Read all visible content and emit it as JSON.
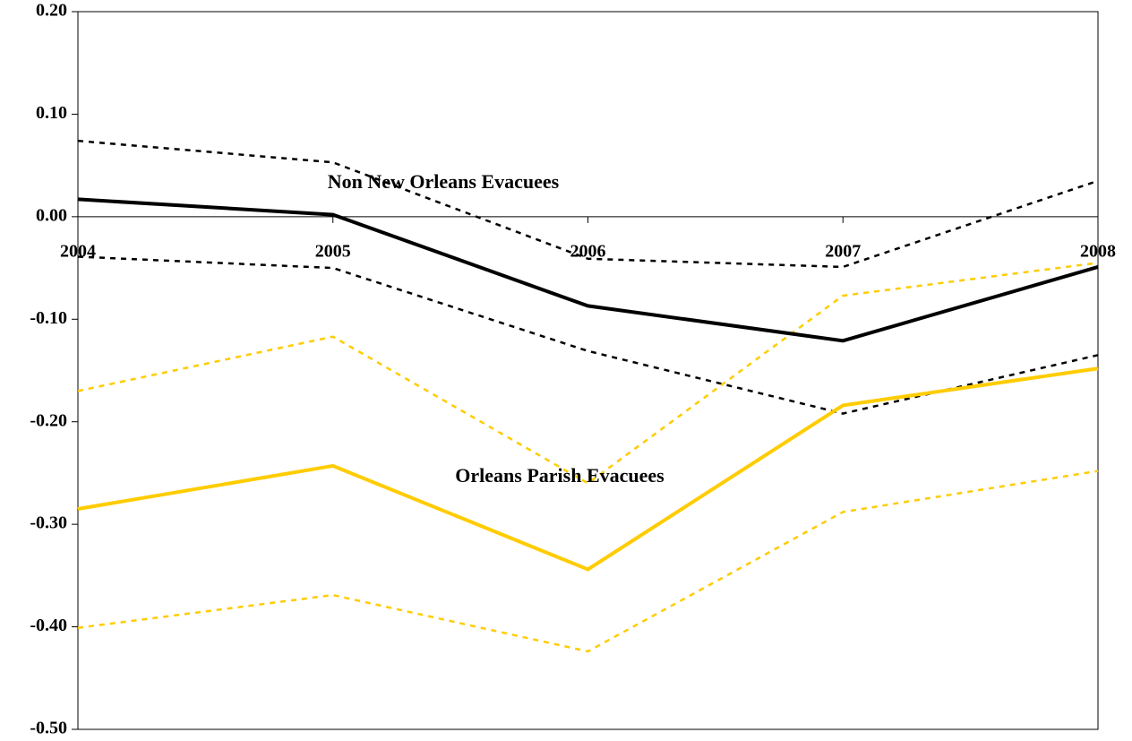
{
  "chart_data": {
    "type": "line",
    "categories": [
      "2004",
      "2005",
      "2006",
      "2007",
      "2008"
    ],
    "ylim": [
      -0.5,
      0.2
    ],
    "yticks": [
      {
        "value": 0.2,
        "label": "0.20"
      },
      {
        "value": 0.1,
        "label": "0.10"
      },
      {
        "value": 0,
        "label": "0.00"
      },
      {
        "value": -0.1,
        "label": "-0.10"
      },
      {
        "value": -0.2,
        "label": "-0.20"
      },
      {
        "value": -0.3,
        "label": "-0.30"
      },
      {
        "value": -0.4,
        "label": "-0.40"
      },
      {
        "value": -0.5,
        "label": "-0.50"
      }
    ],
    "grid": false,
    "annotations": [
      "Non New Orleans Evacuees",
      "Orleans Parish Evacuees"
    ],
    "series": [
      {
        "color": "#000000",
        "style": "dashed",
        "values": [
          0.074,
          0.053,
          -0.041,
          -0.049,
          0.035
        ]
      },
      {
        "color": "#000000",
        "style": "dashed",
        "values": [
          -0.039,
          -0.05,
          -0.131,
          -0.192,
          -0.135
        ]
      },
      {
        "color": "#ffcc00",
        "style": "dashed",
        "values": [
          -0.17,
          -0.117,
          -0.26,
          -0.077,
          -0.045
        ]
      },
      {
        "color": "#ffcc00",
        "style": "dashed",
        "values": [
          -0.401,
          -0.369,
          -0.424,
          -0.288,
          -0.248
        ]
      },
      {
        "color": "#000000",
        "style": "solid",
        "values": [
          0.017,
          0.002,
          -0.087,
          -0.121,
          -0.049
        ]
      },
      {
        "color": "#ffcc00",
        "style": "solid",
        "values": [
          -0.285,
          -0.243,
          -0.344,
          -0.184,
          -0.148
        ]
      }
    ]
  }
}
